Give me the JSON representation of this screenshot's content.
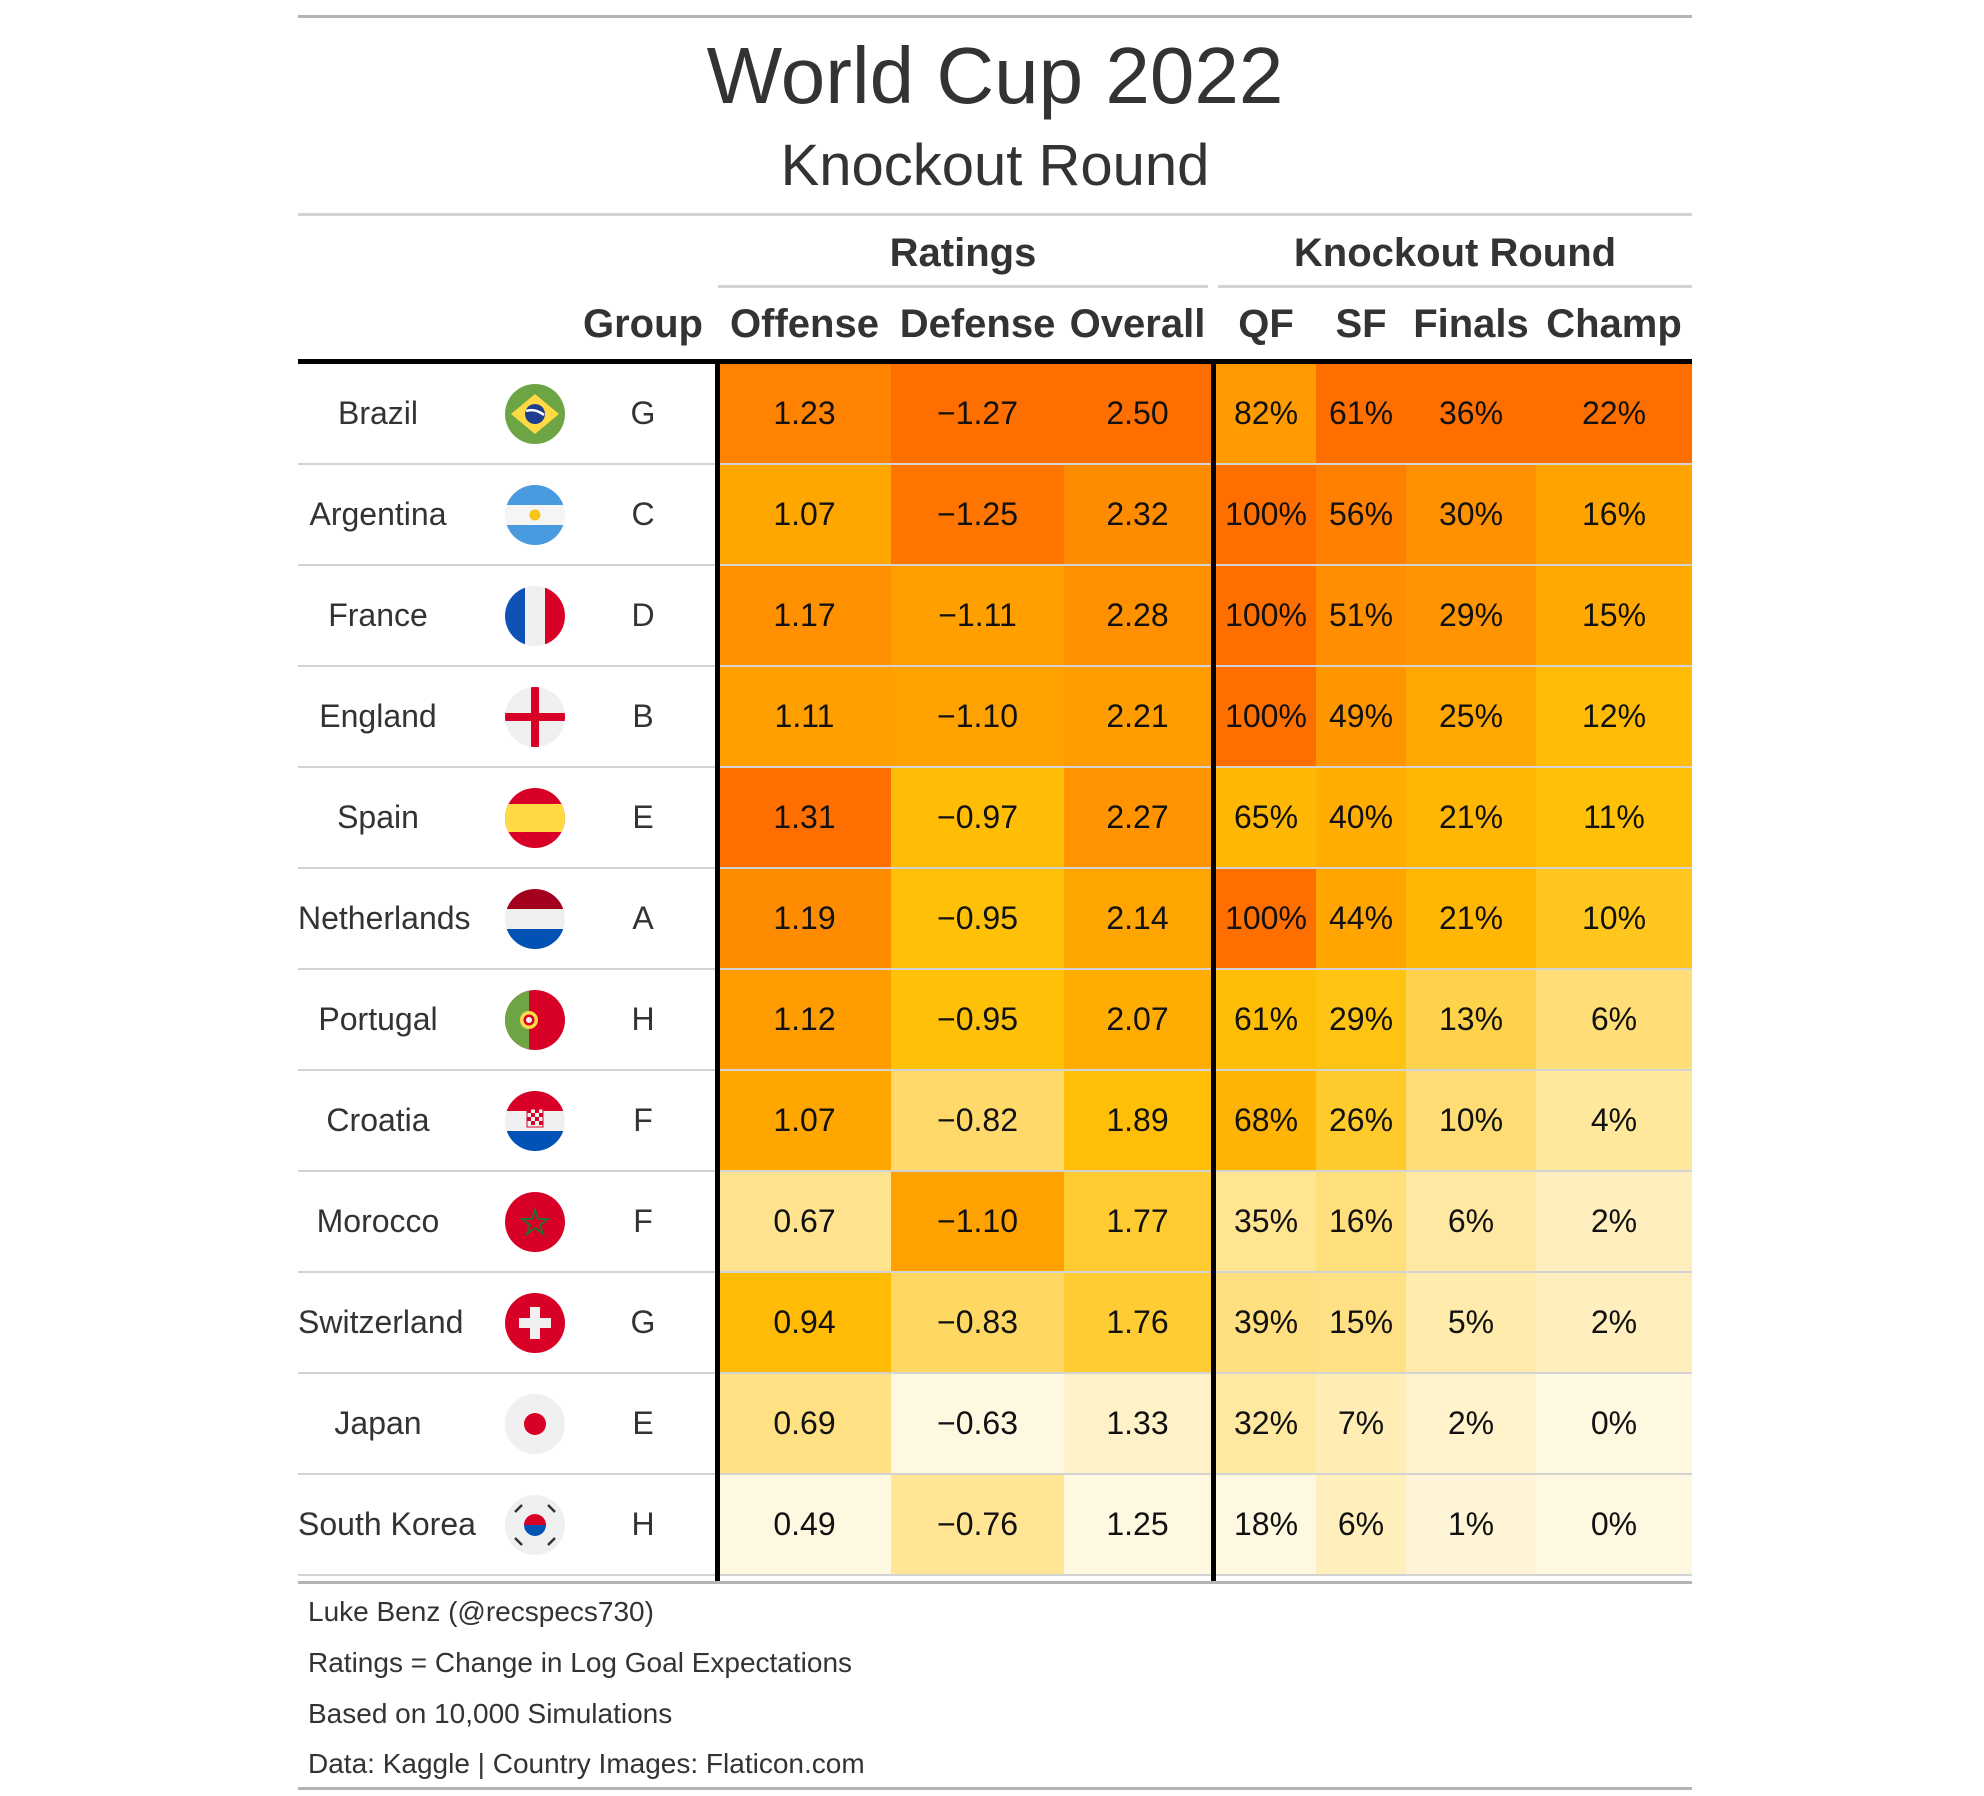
{
  "header": {
    "title": "World Cup 2022",
    "subtitle": "Knockout Round",
    "spanners": {
      "ratings": "Ratings",
      "knockout": "Knockout Round"
    }
  },
  "columns": [
    "Group",
    "Offense",
    "Defense",
    "Overall",
    "QF",
    "SF",
    "Finals",
    "Champ"
  ],
  "colors": {
    "scale": [
      "#fff8e1",
      "#ffe082",
      "#ffc107",
      "#ffa000",
      "#ff6f00"
    ],
    "rule": "#b4b4b4",
    "divider": "#000000"
  },
  "chart_data": {
    "type": "table",
    "title": "World Cup 2022",
    "subtitle": "Knockout Round",
    "rows": [
      {
        "team": "Brazil",
        "flag": "brazil-flag-icon",
        "group": "G",
        "offense": "1.23",
        "defense": "−1.27",
        "overall": "2.50",
        "qf": "82%",
        "sf": "61%",
        "finals": "36%",
        "champ": "22%"
      },
      {
        "team": "Argentina",
        "flag": "argentina-flag-icon",
        "group": "C",
        "offense": "1.07",
        "defense": "−1.25",
        "overall": "2.32",
        "qf": "100%",
        "sf": "56%",
        "finals": "30%",
        "champ": "16%"
      },
      {
        "team": "France",
        "flag": "france-flag-icon",
        "group": "D",
        "offense": "1.17",
        "defense": "−1.11",
        "overall": "2.28",
        "qf": "100%",
        "sf": "51%",
        "finals": "29%",
        "champ": "15%"
      },
      {
        "team": "England",
        "flag": "england-flag-icon",
        "group": "B",
        "offense": "1.11",
        "defense": "−1.10",
        "overall": "2.21",
        "qf": "100%",
        "sf": "49%",
        "finals": "25%",
        "champ": "12%"
      },
      {
        "team": "Spain",
        "flag": "spain-flag-icon",
        "group": "E",
        "offense": "1.31",
        "defense": "−0.97",
        "overall": "2.27",
        "qf": "65%",
        "sf": "40%",
        "finals": "21%",
        "champ": "11%"
      },
      {
        "team": "Netherlands",
        "flag": "netherlands-flag-icon",
        "group": "A",
        "offense": "1.19",
        "defense": "−0.95",
        "overall": "2.14",
        "qf": "100%",
        "sf": "44%",
        "finals": "21%",
        "champ": "10%"
      },
      {
        "team": "Portugal",
        "flag": "portugal-flag-icon",
        "group": "H",
        "offense": "1.12",
        "defense": "−0.95",
        "overall": "2.07",
        "qf": "61%",
        "sf": "29%",
        "finals": "13%",
        "champ": "6%"
      },
      {
        "team": "Croatia",
        "flag": "croatia-flag-icon",
        "group": "F",
        "offense": "1.07",
        "defense": "−0.82",
        "overall": "1.89",
        "qf": "68%",
        "sf": "26%",
        "finals": "10%",
        "champ": "4%"
      },
      {
        "team": "Morocco",
        "flag": "morocco-flag-icon",
        "group": "F",
        "offense": "0.67",
        "defense": "−1.10",
        "overall": "1.77",
        "qf": "35%",
        "sf": "16%",
        "finals": "6%",
        "champ": "2%"
      },
      {
        "team": "Switzerland",
        "flag": "switzerland-flag-icon",
        "group": "G",
        "offense": "0.94",
        "defense": "−0.83",
        "overall": "1.76",
        "qf": "39%",
        "sf": "15%",
        "finals": "5%",
        "champ": "2%"
      },
      {
        "team": "Japan",
        "flag": "japan-flag-icon",
        "group": "E",
        "offense": "0.69",
        "defense": "−0.63",
        "overall": "1.33",
        "qf": "32%",
        "sf": "7%",
        "finals": "2%",
        "champ": "0%"
      },
      {
        "team": "South Korea",
        "flag": "south-korea-flag-icon",
        "group": "H",
        "offense": "0.49",
        "defense": "−0.76",
        "overall": "1.25",
        "qf": "18%",
        "sf": "6%",
        "finals": "1%",
        "champ": "0%"
      }
    ]
  },
  "footnotes": [
    "Luke Benz (@recspecs730)",
    "Ratings = Change in Log Goal Expectations",
    "Based on 10,000 Simulations",
    "Data: Kaggle | Country Images: Flaticon.com"
  ]
}
